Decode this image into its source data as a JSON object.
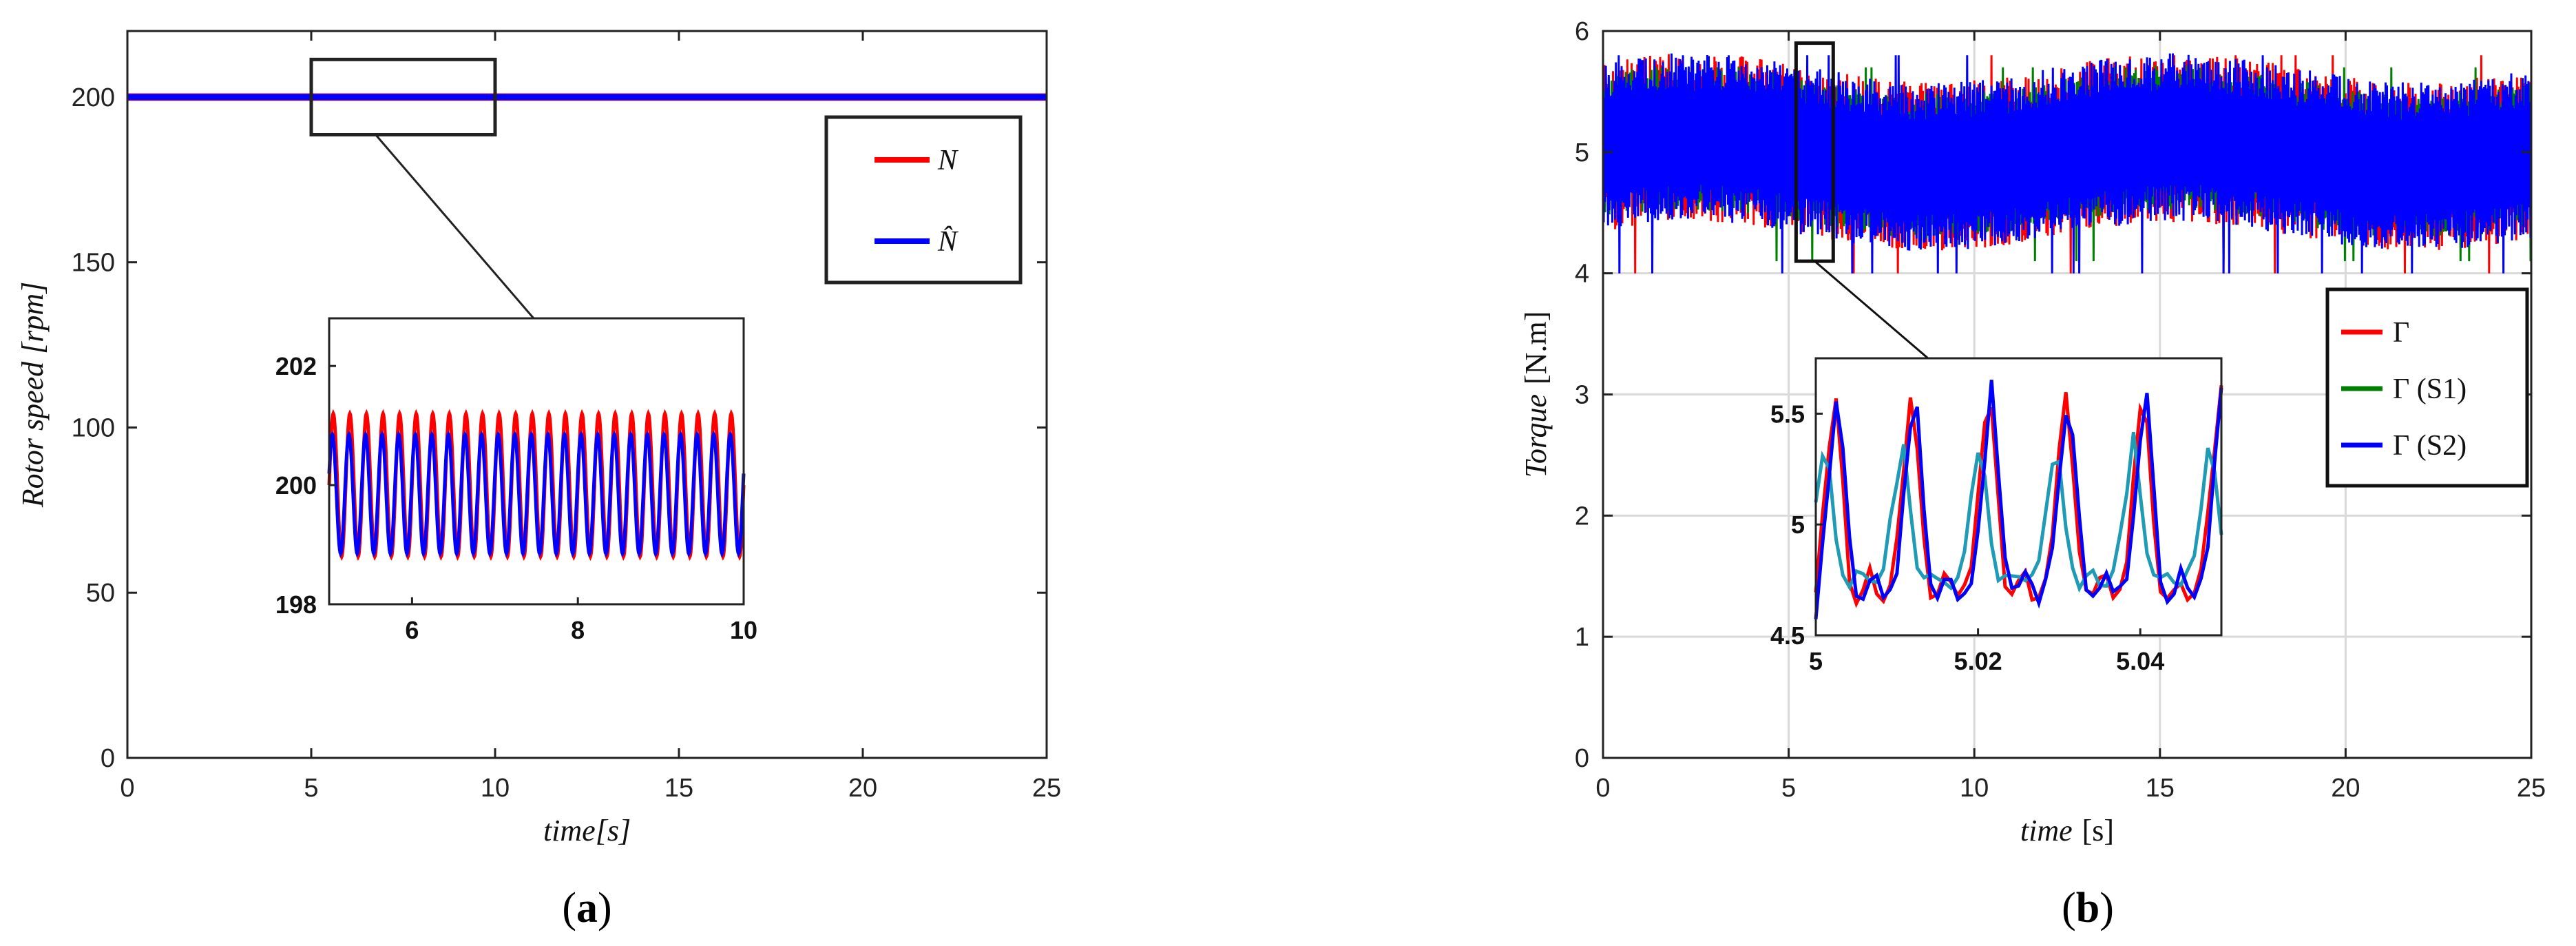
{
  "chart_data": [
    {
      "id": "a",
      "type": "line",
      "caption_open": "(",
      "caption_letter": "a",
      "caption_close": ")",
      "xlabel": "time[s]",
      "ylabel": "Rotor speed [rpm]",
      "xlim": [
        0,
        25
      ],
      "ylim": [
        0,
        220
      ],
      "xticks": [
        0,
        5,
        10,
        15,
        20,
        25
      ],
      "yticks": [
        0,
        50,
        100,
        150,
        200
      ],
      "grid": false,
      "legend_position": "top-right",
      "series": [
        {
          "name": "N",
          "color": "#ff0000",
          "mean": 200.0,
          "amplitude": 1.2,
          "period_s": 0.2
        },
        {
          "name": "N̂",
          "color": "#0000ff",
          "mean": 200.0,
          "amplitude": 1.0,
          "period_s": 0.2
        }
      ],
      "zoom_box": {
        "xlim": [
          5,
          10
        ],
        "ylim": [
          198,
          202
        ]
      },
      "inset": {
        "xlim": [
          5,
          10
        ],
        "ylim": [
          198,
          202.8
        ],
        "xticks": [
          6,
          8,
          10
        ],
        "yticks": [
          198,
          200,
          202
        ]
      }
    },
    {
      "id": "b",
      "type": "line",
      "caption_open": "(",
      "caption_letter": "b",
      "caption_close": ")",
      "xlabel_italic": "time",
      "xlabel_unit": "[s]",
      "ylabel_italic": "Torque",
      "ylabel_unit": "[N.m]",
      "xlim": [
        0,
        25
      ],
      "ylim": [
        0,
        6
      ],
      "xticks": [
        0,
        5,
        10,
        15,
        20,
        25
      ],
      "yticks": [
        0,
        1,
        2,
        3,
        4,
        5,
        6
      ],
      "grid": true,
      "legend_position": "right",
      "series": [
        {
          "name": "Γ",
          "color": "#ff0000",
          "mean": 5.0,
          "band_min": 4.3,
          "band_max": 5.7
        },
        {
          "name": "Γ (S1)",
          "color": "#008000",
          "mean": 5.0,
          "band_min": 4.4,
          "band_max": 5.6
        },
        {
          "name": "Γ (S2)",
          "color": "#0000ff",
          "mean": 5.0,
          "band_min": 4.3,
          "band_max": 5.7
        }
      ],
      "zoom_box": {
        "xlim": [
          5.2,
          6.2
        ],
        "ylim": [
          4.1,
          5.9
        ]
      },
      "inset": {
        "xlim": [
          5,
          5.05
        ],
        "ylim": [
          4.5,
          5.75
        ],
        "xticks": [
          5,
          5.02,
          5.04
        ],
        "yticks": [
          4.5,
          5,
          5.5
        ],
        "period": 0.0095,
        "peak": 5.65,
        "trough": 4.72
      }
    }
  ]
}
